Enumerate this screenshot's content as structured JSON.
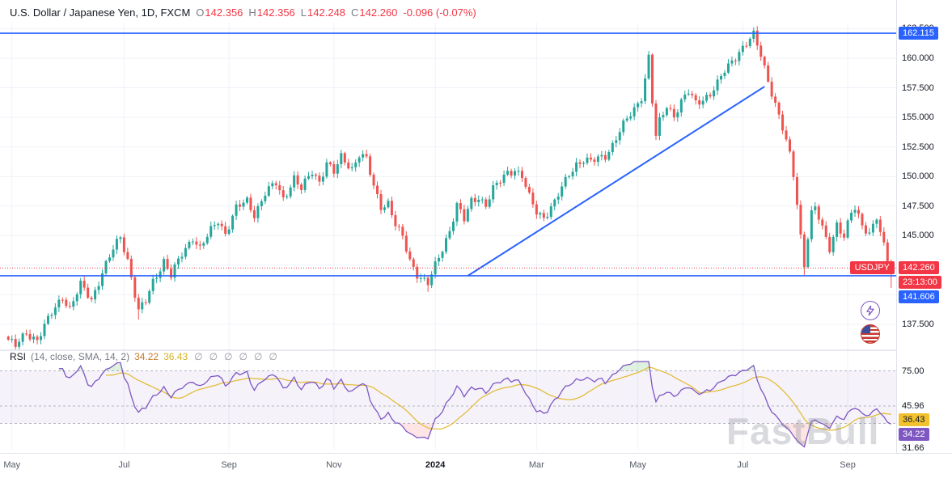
{
  "header": {
    "symbol_title": "U.S. Dollar / Japanese Yen, 1D, FXCM",
    "ohlc": {
      "o_label": "O",
      "o": "142.356",
      "h_label": "H",
      "h": "142.356",
      "l_label": "L",
      "l": "142.248",
      "c_label": "C",
      "c": "142.260",
      "change": "-0.096 (-0.07%)"
    }
  },
  "rsi_header": {
    "title": "RSI",
    "params": "(14, close, SMA, 14, 2)",
    "value1": "34.22",
    "value2": "36.43",
    "empties": [
      "∅",
      "∅",
      "∅",
      "∅",
      "∅",
      "∅"
    ]
  },
  "watermark": "FastBull",
  "colors": {
    "up": "#26a69a",
    "down": "#ef5350",
    "line_blue": "#2962ff",
    "last_price_red": "#f23645",
    "rsi_line": "#7e57c2",
    "rsi_sma": "#e3bd3a",
    "band_fill": "#7e57c2",
    "grid": "#eef1f7",
    "axis_text": "#131722",
    "overbought_fill": "#4caf50",
    "oversold_fill": "#ef5350"
  },
  "chart_data": {
    "type": "candlestick",
    "symbol": "USDJPY",
    "timeframe": "1D",
    "exchange": "FXCM",
    "current": {
      "open": 142.356,
      "high": 142.356,
      "low": 142.248,
      "close": 142.26,
      "change": -0.096,
      "change_pct": -0.07
    },
    "countdown": "23:13:00",
    "num_candles": 245,
    "price_path": [
      [
        0,
        136.2
      ],
      [
        2,
        135.6
      ],
      [
        5,
        136.8
      ],
      [
        8,
        136.2
      ],
      [
        12,
        138.4
      ],
      [
        15,
        139.9
      ],
      [
        17,
        138.8
      ],
      [
        20,
        140.8
      ],
      [
        23,
        139.6
      ],
      [
        26,
        141.9
      ],
      [
        29,
        143.8
      ],
      [
        31,
        144.9
      ],
      [
        33,
        143.0
      ],
      [
        36,
        138.6
      ],
      [
        38,
        139.4
      ],
      [
        40,
        141.1
      ],
      [
        43,
        142.9
      ],
      [
        45,
        141.6
      ],
      [
        48,
        143.4
      ],
      [
        51,
        144.9
      ],
      [
        53,
        143.9
      ],
      [
        56,
        145.4
      ],
      [
        58,
        146.3
      ],
      [
        60,
        145.2
      ],
      [
        63,
        147.3
      ],
      [
        66,
        147.9
      ],
      [
        68,
        146.8
      ],
      [
        71,
        148.6
      ],
      [
        74,
        149.4
      ],
      [
        76,
        148.1
      ],
      [
        79,
        149.9
      ],
      [
        81,
        148.9
      ],
      [
        84,
        150.4
      ],
      [
        86,
        149.6
      ],
      [
        88,
        151.2
      ],
      [
        90,
        150.3
      ],
      [
        92,
        151.6
      ],
      [
        95,
        150.7
      ],
      [
        97,
        151.9
      ],
      [
        99,
        151.4
      ],
      [
        101,
        149.1
      ],
      [
        103,
        147.5
      ],
      [
        105,
        147.8
      ],
      [
        107,
        145.9
      ],
      [
        109,
        144.8
      ],
      [
        111,
        142.9
      ],
      [
        113,
        141.8
      ],
      [
        116,
        140.9
      ],
      [
        118,
        142.4
      ],
      [
        120,
        143.9
      ],
      [
        122,
        145.5
      ],
      [
        124,
        147.6
      ],
      [
        126,
        146.3
      ],
      [
        128,
        147.9
      ],
      [
        130,
        148.3
      ],
      [
        132,
        147.6
      ],
      [
        134,
        148.9
      ],
      [
        136,
        149.6
      ],
      [
        138,
        150.4
      ],
      [
        140,
        150.6
      ],
      [
        142,
        150.0
      ],
      [
        144,
        148.2
      ],
      [
        146,
        147.0
      ],
      [
        148,
        146.6
      ],
      [
        151,
        147.8
      ],
      [
        153,
        149.0
      ],
      [
        155,
        150.2
      ],
      [
        157,
        151.1
      ],
      [
        159,
        151.4
      ],
      [
        161,
        151.2
      ],
      [
        163,
        151.5
      ],
      [
        165,
        151.8
      ],
      [
        167,
        152.7
      ],
      [
        169,
        153.8
      ],
      [
        171,
        154.8
      ],
      [
        173,
        155.7
      ],
      [
        175,
        156.8
      ],
      [
        176,
        158.3
      ],
      [
        177,
        160.1
      ],
      [
        178,
        156.3
      ],
      [
        179,
        153.3
      ],
      [
        180,
        154.6
      ],
      [
        182,
        156.0
      ],
      [
        184,
        155.2
      ],
      [
        186,
        156.3
      ],
      [
        188,
        157.1
      ],
      [
        190,
        156.2
      ],
      [
        192,
        156.6
      ],
      [
        194,
        157.0
      ],
      [
        196,
        157.8
      ],
      [
        198,
        158.9
      ],
      [
        200,
        159.8
      ],
      [
        202,
        160.6
      ],
      [
        204,
        161.2
      ],
      [
        206,
        161.9
      ],
      [
        208,
        160.3
      ],
      [
        210,
        158.2
      ],
      [
        212,
        156.1
      ],
      [
        214,
        154.0
      ],
      [
        216,
        151.8
      ],
      [
        217,
        150.2
      ],
      [
        218,
        147.8
      ],
      [
        219,
        145.0
      ],
      [
        220,
        142.6
      ],
      [
        221,
        144.9
      ],
      [
        222,
        146.8
      ],
      [
        223,
        147.3
      ],
      [
        225,
        145.6
      ],
      [
        227,
        144.0
      ],
      [
        229,
        146.0
      ],
      [
        231,
        144.8
      ],
      [
        233,
        146.9
      ],
      [
        234,
        147.3
      ],
      [
        236,
        146.0
      ],
      [
        238,
        145.2
      ],
      [
        240,
        146.5
      ],
      [
        241,
        145.1
      ],
      [
        243,
        143.0
      ],
      [
        244,
        142.26
      ]
    ],
    "wick_overrides": {
      "36": {
        "l": 137.9
      },
      "116": {
        "l": 140.25
      },
      "177": {
        "h": 160.25
      },
      "206": {
        "h": 162.12
      },
      "220": {
        "l": 141.68
      },
      "244": {
        "l": 140.58
      }
    },
    "levels": {
      "resistance": 162.115,
      "support": 141.606,
      "last_price": 142.26
    },
    "trendline": {
      "from": {
        "i": 127,
        "price": 141.6
      },
      "to": {
        "i": 209,
        "price": 157.6
      }
    },
    "price_gridlines": [
      162.5,
      160,
      157.5,
      155,
      152.5,
      150,
      147.5,
      145,
      142.5,
      140,
      137.5
    ],
    "price_axis_labels": [
      {
        "text": "162.500",
        "price": 162.5
      },
      {
        "text": "160.000",
        "price": 160
      },
      {
        "text": "157.500",
        "price": 157.5
      },
      {
        "text": "155.000",
        "price": 155
      },
      {
        "text": "152.500",
        "price": 152.5
      },
      {
        "text": "150.000",
        "price": 150
      },
      {
        "text": "147.500",
        "price": 147.5
      },
      {
        "text": "145.000",
        "price": 145
      },
      {
        "text": "137.500",
        "price": 137.5
      }
    ],
    "price_axis_badges": [
      {
        "text": "162.115",
        "price": 162.115,
        "style": "blue"
      },
      {
        "text": "142.260",
        "price": 142.26,
        "style": "red"
      },
      {
        "text": "23:13:00",
        "price": 142.26,
        "style": "red"
      },
      {
        "text": "141.606",
        "price": 141.606,
        "style": "blue"
      }
    ],
    "x_axis_labels": [
      {
        "label": "May",
        "i": 1,
        "major": false
      },
      {
        "label": "Jul",
        "i": 32,
        "major": false
      },
      {
        "label": "Sep",
        "i": 61,
        "major": false
      },
      {
        "label": "Nov",
        "i": 90,
        "major": false
      },
      {
        "label": "2024",
        "i": 118,
        "major": true
      },
      {
        "label": "Mar",
        "i": 146,
        "major": false
      },
      {
        "label": "May",
        "i": 174,
        "major": false
      },
      {
        "label": "Jul",
        "i": 203,
        "major": false
      },
      {
        "label": "Sep",
        "i": 232,
        "major": false
      }
    ],
    "rsi": {
      "period": 14,
      "sma_period": 14,
      "current": 34.22,
      "sma_current": 36.43,
      "bands": [
        75.0,
        45.96,
        31.66
      ],
      "band_fill_between": [
        75.0,
        31.66
      ],
      "axis_labels": [
        {
          "text": "75.00",
          "value": 75,
          "style": "plain"
        },
        {
          "text": "45.96",
          "value": 45.96,
          "style": "plain"
        },
        {
          "text": "36.43",
          "value": 36.43,
          "style": "yellow"
        },
        {
          "text": "34.22",
          "value": 34.22,
          "style": "purple"
        },
        {
          "text": "31.66",
          "value": 31.66,
          "style": "plain"
        }
      ]
    }
  }
}
